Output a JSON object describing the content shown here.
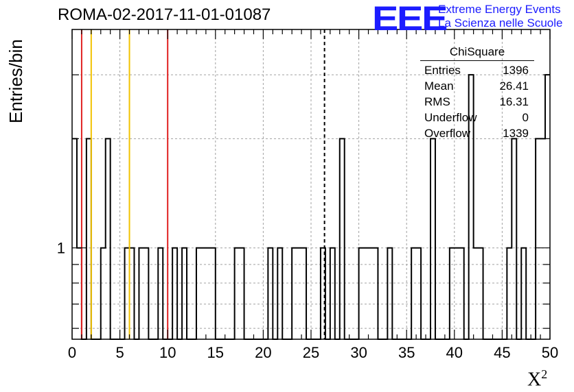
{
  "header": {
    "title": "ROMA-02-2017-11-01-01087",
    "logo_text": "EEE",
    "logo_line1": "Extreme Energy Events",
    "logo_line2": "La Scienza nelle Scuole"
  },
  "stats_box": {
    "title": "ChiSquare",
    "rows": [
      {
        "label": "Entries",
        "value": "1396"
      },
      {
        "label": "Mean",
        "value": "26.41"
      },
      {
        "label": "RMS",
        "value": "16.31"
      },
      {
        "label": "Underflow",
        "value": "0"
      },
      {
        "label": "Overflow",
        "value": "1339"
      }
    ]
  },
  "chart_data": {
    "type": "histogram",
    "xlabel": "X",
    "xlabel_superscript": "2",
    "ylabel": "Entries/bin",
    "xlim": [
      0,
      50
    ],
    "ylim": [
      0.56,
      4
    ],
    "y_scale": "log",
    "bin_width": 0.5,
    "x_ticks": [
      "0",
      "5",
      "10",
      "15",
      "20",
      "25",
      "30",
      "35",
      "40",
      "45",
      "50"
    ],
    "y_tick_labels": [
      {
        "value": 1,
        "label": "1"
      }
    ],
    "grid": true,
    "bins": [
      [
        0.0,
        2
      ],
      [
        0.5,
        1
      ],
      [
        1.0,
        0
      ],
      [
        1.5,
        2
      ],
      [
        2.0,
        0
      ],
      [
        2.5,
        0
      ],
      [
        3.0,
        1
      ],
      [
        3.5,
        2
      ],
      [
        4.0,
        0
      ],
      [
        5.5,
        1
      ],
      [
        6.0,
        1
      ],
      [
        7.0,
        1
      ],
      [
        7.5,
        1
      ],
      [
        9.0,
        1
      ],
      [
        10.5,
        1
      ],
      [
        11.5,
        1
      ],
      [
        13.0,
        1
      ],
      [
        13.5,
        1
      ],
      [
        14.0,
        1
      ],
      [
        14.5,
        1
      ],
      [
        17.0,
        1
      ],
      [
        17.5,
        1
      ],
      [
        20.5,
        1
      ],
      [
        21.5,
        1
      ],
      [
        23.0,
        1
      ],
      [
        23.5,
        1
      ],
      [
        24.0,
        1
      ],
      [
        26.0,
        1
      ],
      [
        27.0,
        1
      ],
      [
        28.0,
        2
      ],
      [
        30.0,
        1
      ],
      [
        30.5,
        1
      ],
      [
        31.0,
        1
      ],
      [
        31.5,
        1
      ],
      [
        33.0,
        1
      ],
      [
        35.5,
        1
      ],
      [
        36.0,
        1
      ],
      [
        37.5,
        2
      ],
      [
        39.5,
        1
      ],
      [
        40.0,
        1
      ],
      [
        40.5,
        1
      ],
      [
        41.5,
        3
      ],
      [
        42.0,
        1
      ],
      [
        42.5,
        1
      ],
      [
        45.5,
        1
      ],
      [
        46.0,
        2
      ],
      [
        47.0,
        1
      ],
      [
        48.5,
        2
      ],
      [
        49.0,
        2
      ],
      [
        49.5,
        3
      ]
    ],
    "vertical_lines": [
      {
        "x": 1.0,
        "color": "#e02020",
        "style": "solid"
      },
      {
        "x": 2.0,
        "color": "#f2c200",
        "style": "solid"
      },
      {
        "x": 6.0,
        "color": "#f2c200",
        "style": "solid"
      },
      {
        "x": 10.0,
        "color": "#e02020",
        "style": "solid"
      },
      {
        "x": 26.41,
        "color": "#000000",
        "style": "dashed"
      }
    ]
  }
}
